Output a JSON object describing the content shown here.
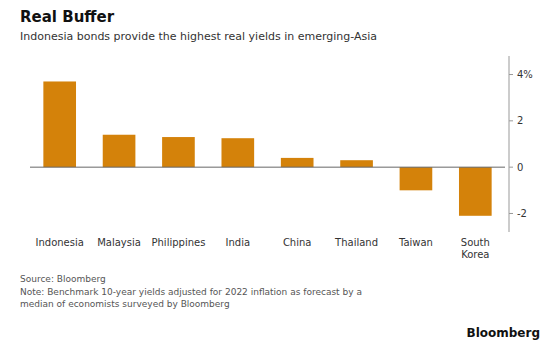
{
  "chart_data": {
    "type": "bar",
    "title": "Real Buffer",
    "subtitle": "Indonesia bonds provide the highest real yields in emerging-Asia",
    "categories": [
      "Indonesia",
      "Malaysia",
      "Philippines",
      "India",
      "China",
      "Thailand",
      "Taiwan",
      "South\nKorea"
    ],
    "values": [
      3.7,
      1.4,
      1.3,
      1.25,
      0.4,
      0.3,
      -1.0,
      -2.1
    ],
    "color": "#D4820A",
    "ylim": [
      -2.8,
      4.8
    ],
    "yticks": [
      -2,
      0,
      2,
      {
        "value": 4,
        "label": "4%"
      }
    ],
    "grid": false,
    "source": "Source: Bloomberg",
    "note": "Note: Benchmark 10-year yields adjusted for 2022 inflation as forecast by a\nmedian of economists surveyed by Bloomberg",
    "credit": "Bloomberg"
  }
}
